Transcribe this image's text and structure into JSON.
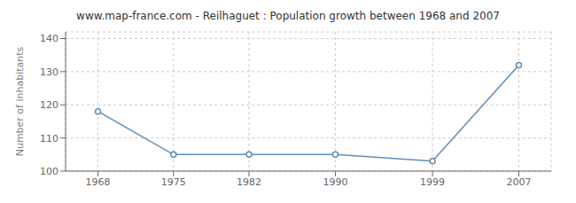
{
  "chart_data": {
    "type": "line",
    "title": "www.map-france.com - Reilhaguet : Population growth between 1968 and 2007",
    "y_label": "Number of inhabitants",
    "x": [
      1968,
      1975,
      1982,
      1990,
      1999,
      2007
    ],
    "values": [
      118,
      105,
      105,
      105,
      103,
      132
    ],
    "xlim": [
      1965,
      2010
    ],
    "xticks": [
      1968,
      1975,
      1982,
      1990,
      1999,
      2007
    ],
    "ylim": [
      100,
      142
    ],
    "yticks": [
      100,
      110,
      120,
      130,
      140
    ],
    "color": "#5f8db5",
    "marker": "circle",
    "grid": true
  }
}
